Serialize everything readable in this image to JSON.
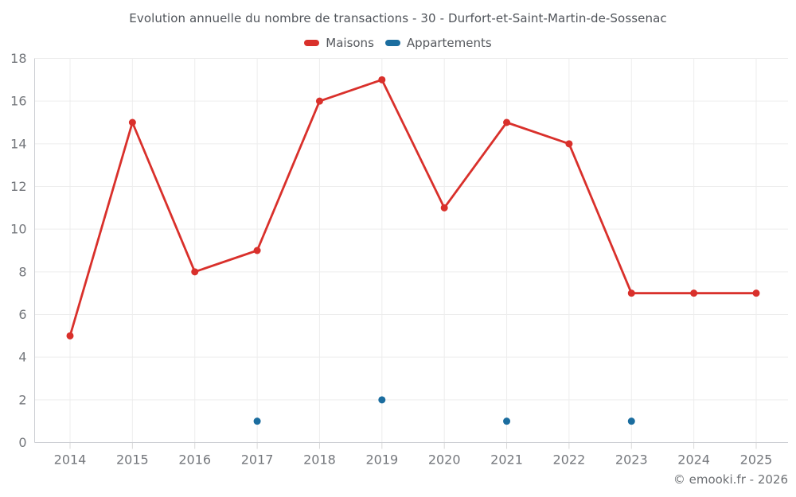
{
  "chart_data": {
    "type": "line",
    "title": "Evolution annuelle du nombre de transactions - 30 - Durfort-et-Saint-Martin-de-Sossenac",
    "categories": [
      "2014",
      "2015",
      "2016",
      "2017",
      "2018",
      "2019",
      "2020",
      "2021",
      "2022",
      "2023",
      "2024",
      "2025"
    ],
    "series": [
      {
        "name": "Maisons",
        "color": "#d9302b",
        "style": "line-with-markers",
        "values": [
          5,
          15,
          8,
          9,
          16,
          17,
          11,
          15,
          14,
          7,
          7,
          7
        ]
      },
      {
        "name": "Appartements",
        "color": "#1b6d9f",
        "style": "markers-only",
        "values": [
          null,
          null,
          null,
          1,
          null,
          2,
          null,
          1,
          null,
          1,
          null,
          null
        ]
      }
    ],
    "ylim": [
      0,
      18
    ],
    "ytick_step": 2,
    "grid": true,
    "legend_position": "top"
  },
  "footer": {
    "copyright": "© emooki.fr - 2026"
  }
}
